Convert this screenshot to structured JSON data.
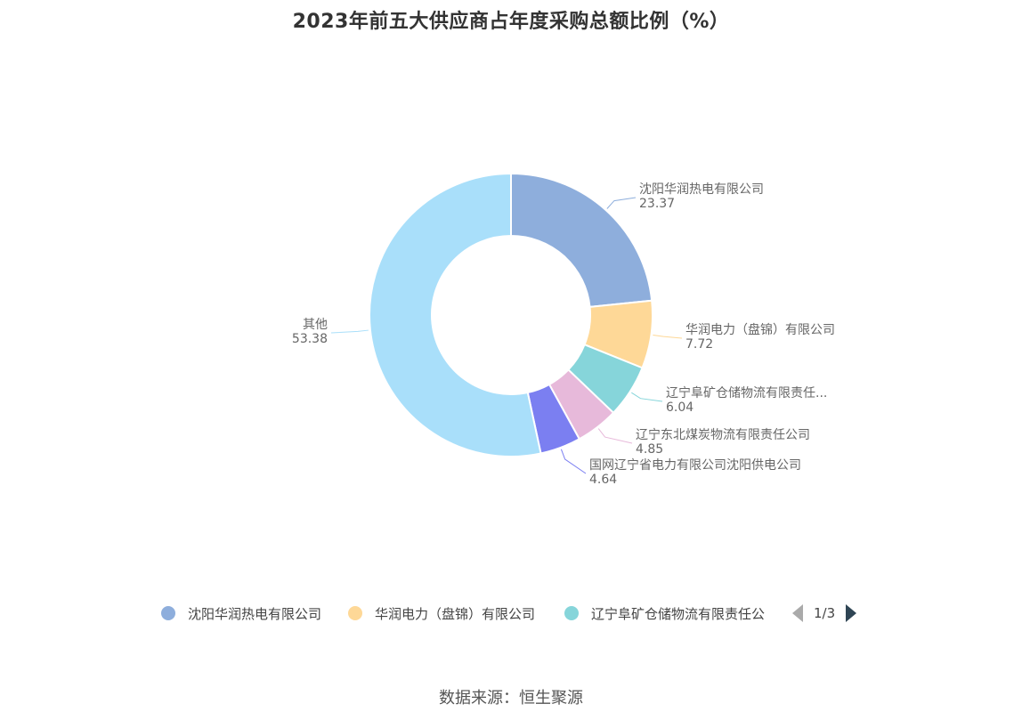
{
  "chart_data": {
    "type": "pie",
    "title": "2023年前五大供应商占年度采购总额比例（%）",
    "slices": [
      {
        "name": "沈阳华润热电有限公司",
        "label_name": "沈阳华润热电有限公司",
        "value": 23.37,
        "color": "#8eaedc"
      },
      {
        "name": "华润电力（盘锦）有限公司",
        "label_name": "华润电力（盘锦）有限公司",
        "value": 7.72,
        "color": "#fed897"
      },
      {
        "name": "辽宁阜矿仓储物流有限责任公司",
        "label_name": "辽宁阜矿仓储物流有限责任...",
        "value": 6.04,
        "color": "#86d5da"
      },
      {
        "name": "辽宁东北煤炭物流有限责任公司",
        "label_name": "辽宁东北煤炭物流有限责任公司",
        "value": 4.85,
        "color": "#e7b9da"
      },
      {
        "name": "国网辽宁省电力有限公司沈阳供电公司",
        "label_name": "国网辽宁省电力有限公司沈阳供电公司",
        "value": 4.64,
        "color": "#7b7ff1"
      },
      {
        "name": "其他",
        "label_name": "其他",
        "value": 53.38,
        "color": "#a9dffa"
      }
    ],
    "value_labels": [
      "23.37",
      "7.72",
      "6.04",
      "4.85",
      "4.64",
      "53.38"
    ],
    "legend_placement": "bottom"
  },
  "legend": {
    "items": [
      {
        "label": "沈阳华润热电有限公司",
        "color": "#8eaedc"
      },
      {
        "label": "华润电力（盘锦）有限公司",
        "color": "#fed897"
      },
      {
        "label": "辽宁阜矿仓储物流有限责任公",
        "color": "#86d5da"
      }
    ],
    "page": "1/3"
  },
  "source": "数据来源：恒生聚源"
}
